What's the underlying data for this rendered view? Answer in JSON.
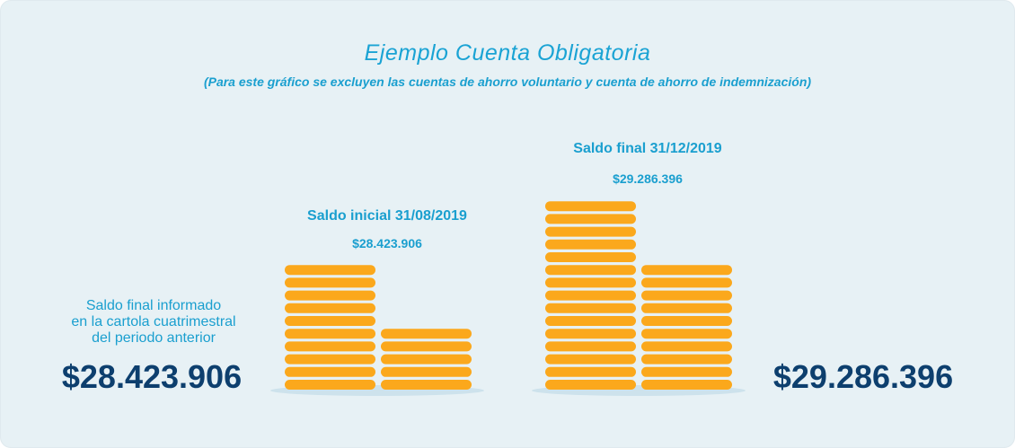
{
  "title": "Ejemplo Cuenta Obligatoria",
  "subtitle": "(Para este gráfico se excluyen las cuentas de ahorro voluntario y cuenta de ahorro de indemnización)",
  "previous": {
    "note_lines": [
      "Saldo final informado",
      "en la cartola cuatrimestral",
      "del periodo anterior"
    ],
    "amount": "$28.423.906"
  },
  "initial": {
    "label": "Saldo inicial 31/08/2019",
    "amount": "$28.423.906",
    "stacks": [
      10,
      5
    ]
  },
  "final": {
    "label": "Saldo final 31/12/2019",
    "amount": "$29.286.396",
    "big_amount": "$29.286.396",
    "stacks": [
      15,
      10
    ]
  },
  "colors": {
    "background": "#e7f1f5",
    "title": "#1aa3d4",
    "labels": "#1a9fcf",
    "amounts": "#0d3f6e",
    "coin": "#fba81c",
    "coin_gap": "#ffd98a",
    "shadow": "#cde2ec"
  }
}
